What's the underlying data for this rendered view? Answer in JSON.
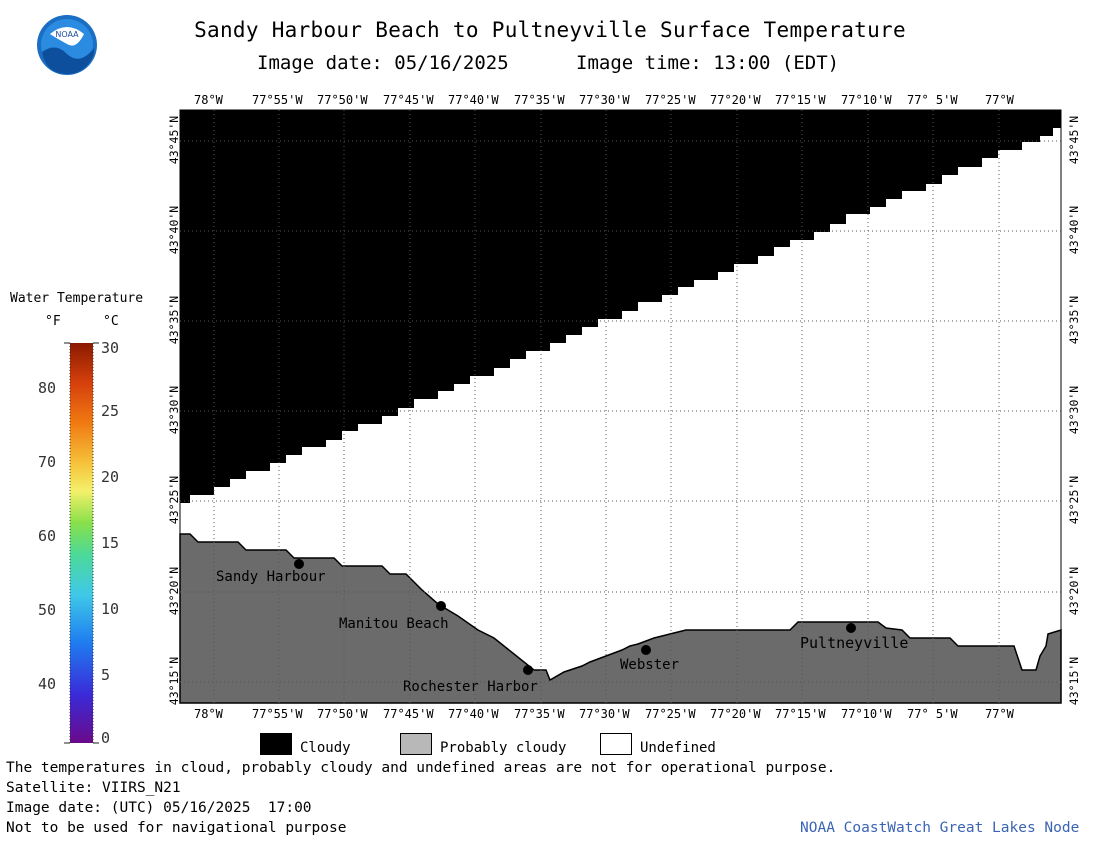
{
  "header": {
    "title": "Sandy Harbour Beach to Pultneyville Surface Temperature",
    "image_date": "Image date: 05/16/2025",
    "image_time": "Image time: 13:00 (EDT)",
    "logo_text": "NOAA"
  },
  "map": {
    "lon_labels": [
      "78°W",
      "77°55'W",
      "77°50'W",
      "77°45'W",
      "77°40'W",
      "77°35'W",
      "77°30'W",
      "77°25'W",
      "77°20'W",
      "77°15'W",
      "77°10'W",
      "77° 5'W",
      "77°W"
    ],
    "lat_labels": [
      "43°45'N",
      "43°40'N",
      "43°35'N",
      "43°30'N",
      "43°25'N",
      "43°20'N",
      "43°15'N"
    ],
    "places": [
      {
        "name": "Sandy Harbour",
        "key": "sandy-harbour"
      },
      {
        "name": "Manitou Beach",
        "key": "manitou-beach"
      },
      {
        "name": "Rochester Harbor",
        "key": "rochester-harbor"
      },
      {
        "name": "Webster",
        "key": "webster"
      },
      {
        "name": "Pultneyville",
        "key": "pultneyville"
      }
    ],
    "colors": {
      "cloud": "#000000",
      "land": "#6b6b6b",
      "undefined": "#ffffff",
      "grid": "#555555"
    }
  },
  "colorbar": {
    "title": "Water Temperature",
    "unit_f": "°F",
    "unit_c": "°C",
    "f_ticks": [
      "80",
      "70",
      "60",
      "50",
      "40"
    ],
    "c_ticks": [
      "30",
      "25",
      "20",
      "15",
      "10",
      "5",
      "0"
    ]
  },
  "legend": {
    "cloudy": "Cloudy",
    "probably_cloudy": "Probably cloudy",
    "undefined": "Undefined"
  },
  "footer": {
    "note": "The temperatures in cloud, probably cloudy and undefined areas are not for operational purpose.",
    "satellite": "Satellite: VIIRS_N21",
    "utc_date": "Image date: (UTC) 05/16/2025  17:00",
    "nav": "Not to be used for navigational purpose",
    "credit": "NOAA CoastWatch Great Lakes Node"
  }
}
